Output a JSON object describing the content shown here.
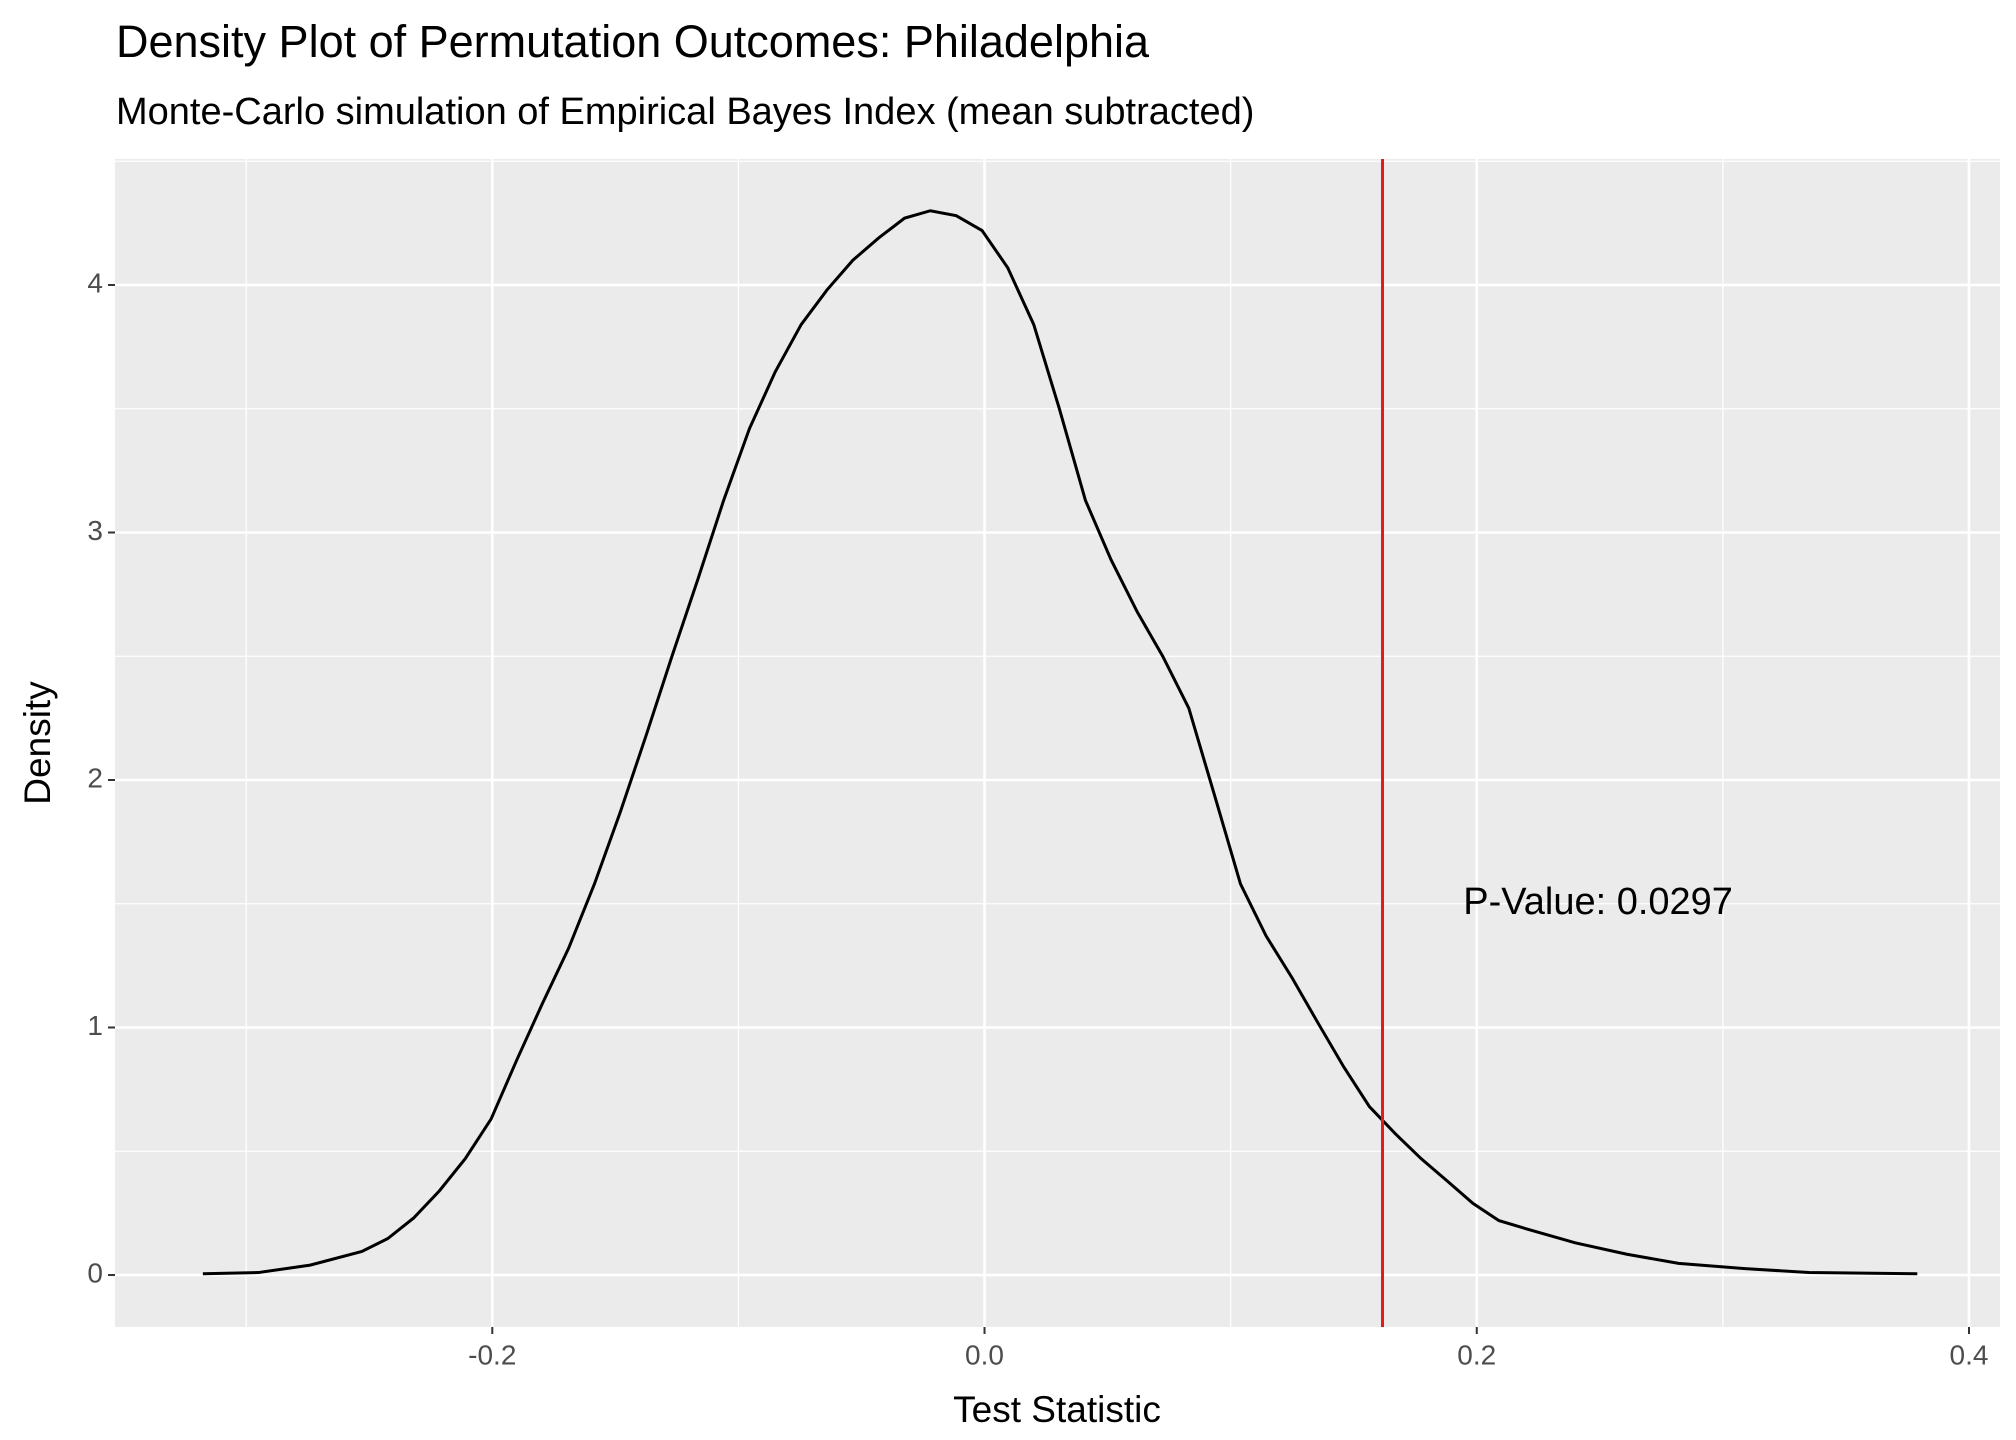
{
  "chart_data": {
    "type": "density",
    "title": "Density Plot of Permutation Outcomes: Philadelphia",
    "subtitle": "Monte-Carlo simulation of Empirical Bayes Index (mean subtracted)",
    "x_label": "Test Statistic",
    "y_label": "Density",
    "x": [
      -0.3176,
      -0.295,
      -0.274,
      -0.253,
      -0.2425,
      -0.232,
      -0.2215,
      -0.211,
      -0.2005,
      -0.19,
      -0.1795,
      -0.169,
      -0.1585,
      -0.148,
      -0.1375,
      -0.127,
      -0.1165,
      -0.106,
      -0.0955,
      -0.085,
      -0.0745,
      -0.064,
      -0.0535,
      -0.043,
      -0.0325,
      -0.022,
      -0.0115,
      -0.001,
      0.0094,
      0.02,
      0.0304,
      0.041,
      0.0514,
      0.062,
      0.0724,
      0.083,
      0.0934,
      0.104,
      0.1144,
      0.125,
      0.1354,
      0.146,
      0.1564,
      0.167,
      0.1774,
      0.188,
      0.1984,
      0.209,
      0.219,
      0.24,
      0.261,
      0.282,
      0.309,
      0.335,
      0.379
    ],
    "values": [
      0.005,
      0.01,
      0.04,
      0.095,
      0.147,
      0.23,
      0.34,
      0.47,
      0.63,
      0.87,
      1.1,
      1.32,
      1.58,
      1.87,
      2.18,
      2.5,
      2.81,
      3.13,
      3.42,
      3.65,
      3.84,
      3.98,
      4.1,
      4.19,
      4.27,
      4.3,
      4.28,
      4.22,
      4.07,
      3.84,
      3.5,
      3.13,
      2.89,
      2.68,
      2.5,
      2.29,
      1.94,
      1.58,
      1.37,
      1.2,
      1.02,
      0.84,
      0.68,
      0.57,
      0.47,
      0.38,
      0.29,
      0.22,
      0.19,
      0.13,
      0.084,
      0.047,
      0.026,
      0.01,
      0.005
    ],
    "color": "#000000",
    "vline": {
      "value": 0.1617,
      "color": "#e41a1c"
    },
    "annotation": {
      "text": "P-Value: 0.0297",
      "x": 0.2493,
      "y": 1.5
    },
    "xlim": [
      -0.3533,
      0.4126
    ],
    "ylim": [
      -0.21,
      4.509
    ],
    "xticks": [
      -0.2,
      {
        "value": 0,
        "label": "0.0"
      },
      0.2,
      0.4
    ],
    "yticks": [
      0,
      1,
      2,
      3,
      4
    ],
    "grid": true,
    "minor_grid": true
  }
}
